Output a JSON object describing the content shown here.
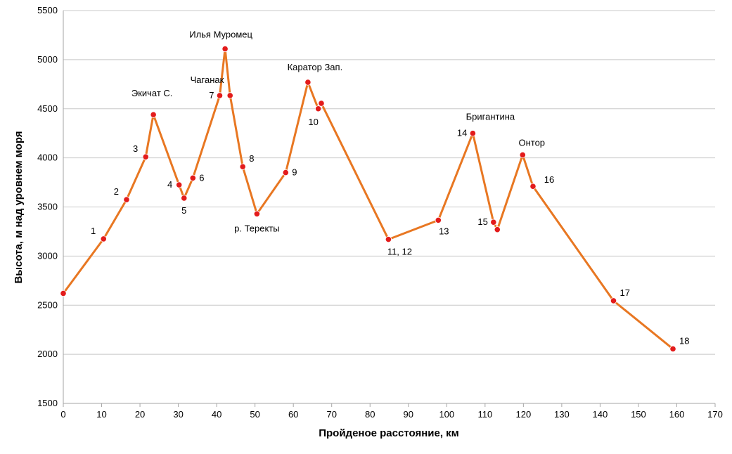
{
  "chart_data": {
    "type": "line",
    "title": "",
    "xlabel": "Пройденое расстояние, км",
    "ylabel": "Высота, м над уровнем моря",
    "xlim": [
      0,
      170
    ],
    "ylim": [
      1500,
      5500
    ],
    "xticks": [
      0,
      10,
      20,
      30,
      40,
      50,
      60,
      70,
      80,
      90,
      100,
      110,
      120,
      130,
      140,
      150,
      160,
      170
    ],
    "yticks": [
      1500,
      2000,
      2500,
      3000,
      3500,
      4000,
      4500,
      5000,
      5500
    ],
    "grid": "horizontal",
    "legend": "none",
    "line_color": "#E87722",
    "marker_color": "#E31B1B",
    "points": [
      {
        "x": 0,
        "y": 2620
      },
      {
        "x": 10.5,
        "y": 3175
      },
      {
        "x": 16.5,
        "y": 3575
      },
      {
        "x": 21.5,
        "y": 4010
      },
      {
        "x": 23.5,
        "y": 4440
      },
      {
        "x": 30.2,
        "y": 3725
      },
      {
        "x": 31.5,
        "y": 3590
      },
      {
        "x": 33.8,
        "y": 3795
      },
      {
        "x": 40.8,
        "y": 4635
      },
      {
        "x": 42.2,
        "y": 5110
      },
      {
        "x": 43.5,
        "y": 4635
      },
      {
        "x": 46.8,
        "y": 3910
      },
      {
        "x": 50.5,
        "y": 3430
      },
      {
        "x": 58,
        "y": 3850
      },
      {
        "x": 63.8,
        "y": 4770
      },
      {
        "x": 66.5,
        "y": 4500
      },
      {
        "x": 67.3,
        "y": 4555
      },
      {
        "x": 84.8,
        "y": 3170
      },
      {
        "x": 97.8,
        "y": 3365
      },
      {
        "x": 106.8,
        "y": 4250
      },
      {
        "x": 112.2,
        "y": 3345
      },
      {
        "x": 113.2,
        "y": 3270
      },
      {
        "x": 119.8,
        "y": 4030
      },
      {
        "x": 122.5,
        "y": 3710
      },
      {
        "x": 143.5,
        "y": 2545
      },
      {
        "x": 159,
        "y": 2055
      }
    ],
    "annotations": [
      {
        "text": "1",
        "x": 10.5,
        "y": 3175,
        "pos": "left-above",
        "size": "small"
      },
      {
        "text": "2",
        "x": 16.5,
        "y": 3575,
        "pos": "left-above",
        "size": "small"
      },
      {
        "text": "3",
        "x": 21.5,
        "y": 4010,
        "pos": "left-above",
        "size": "small"
      },
      {
        "text": "Экичат С.",
        "x": 23.5,
        "y": 4440,
        "pos": "above-left",
        "size": "small"
      },
      {
        "text": "4",
        "x": 30.2,
        "y": 3725,
        "pos": "left",
        "size": "small"
      },
      {
        "text": "5",
        "x": 31.5,
        "y": 3590,
        "pos": "below",
        "size": "small"
      },
      {
        "text": "6",
        "x": 33.8,
        "y": 3795,
        "pos": "right",
        "size": "small"
      },
      {
        "text": "7",
        "x": 40.8,
        "y": 4635,
        "pos": "left",
        "size": "small"
      },
      {
        "text": "Чаганак",
        "x": 40.8,
        "y": 4635,
        "pos": "above-left",
        "size": "small"
      },
      {
        "text": "Илья Муромец",
        "x": 42.2,
        "y": 5110,
        "pos": "above",
        "size": "small"
      },
      {
        "text": "8",
        "x": 46.8,
        "y": 3910,
        "pos": "right-above",
        "size": "small"
      },
      {
        "text": "р. Теректы",
        "x": 50.5,
        "y": 3430,
        "pos": "below",
        "size": "large"
      },
      {
        "text": "9",
        "x": 58,
        "y": 3850,
        "pos": "right",
        "size": "small"
      },
      {
        "text": "Каратор Зап.",
        "x": 63.8,
        "y": 4770,
        "pos": "above",
        "size": "small"
      },
      {
        "text": "10",
        "x": 66.5,
        "y": 4500,
        "pos": "below-left",
        "size": "large"
      },
      {
        "text": "11, 12",
        "x": 84.8,
        "y": 3170,
        "pos": "below-right",
        "size": "small"
      },
      {
        "text": "13",
        "x": 97.8,
        "y": 3365,
        "pos": "below-right",
        "size": "large"
      },
      {
        "text": "14",
        "x": 106.8,
        "y": 4250,
        "pos": "left",
        "size": "large"
      },
      {
        "text": "Бригантина",
        "x": 106.8,
        "y": 4250,
        "pos": "above-right",
        "size": "small"
      },
      {
        "text": "15",
        "x": 112.2,
        "y": 3345,
        "pos": "left",
        "size": "large"
      },
      {
        "text": "Онтор",
        "x": 119.8,
        "y": 4030,
        "pos": "above-right",
        "size": "small"
      },
      {
        "text": "16",
        "x": 122.5,
        "y": 3710,
        "pos": "right-above",
        "size": "small"
      },
      {
        "text": "17",
        "x": 143.5,
        "y": 2545,
        "pos": "right-above",
        "size": "large"
      },
      {
        "text": "18",
        "x": 159,
        "y": 2055,
        "pos": "right-above",
        "size": "large"
      }
    ]
  }
}
